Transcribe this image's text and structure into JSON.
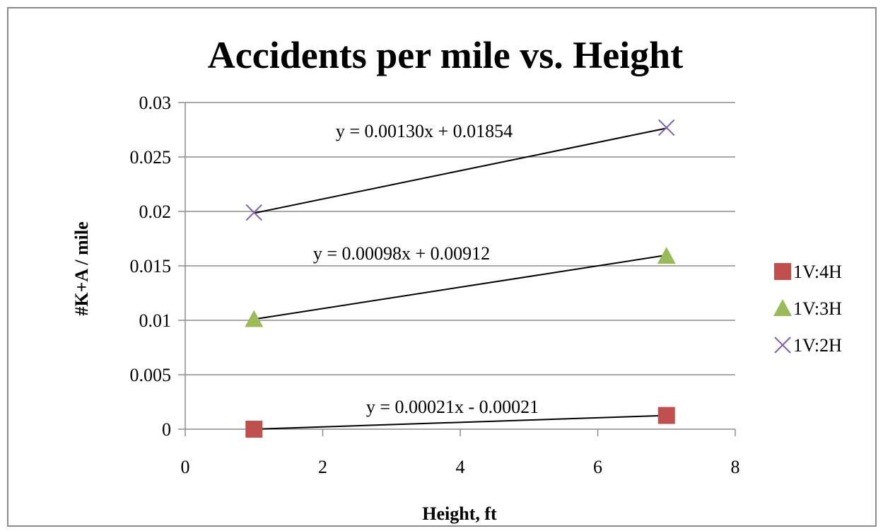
{
  "chart_data": {
    "type": "scatter",
    "title": "Accidents per mile vs. Height",
    "xlabel": "Height, ft",
    "ylabel": "#K+A / mile",
    "xlim": [
      0,
      8
    ],
    "ylim": [
      0,
      0.03
    ],
    "x_ticks": [
      "0",
      "2",
      "4",
      "6",
      "8"
    ],
    "y_ticks": [
      "0",
      "0.005",
      "0.01",
      "0.015",
      "0.02",
      "0.025",
      "0.03"
    ],
    "grid": "horizontal",
    "legend_position": "right",
    "series": [
      {
        "name": "1V:4H",
        "marker": "square",
        "color": "#c0504d",
        "x": [
          1,
          7
        ],
        "y": [
          0.0,
          0.00126
        ],
        "trendline": {
          "slope": 0.00021,
          "intercept": -0.00021,
          "equation": "y = 0.00021x - 0.00021"
        }
      },
      {
        "name": "1V:3H",
        "marker": "triangle",
        "color": "#9bbb59",
        "x": [
          1,
          7
        ],
        "y": [
          0.0101,
          0.0159
        ],
        "trendline": {
          "slope": 0.00098,
          "intercept": 0.00912,
          "equation": "y = 0.00098x + 0.00912"
        }
      },
      {
        "name": "1V:2H",
        "marker": "x",
        "color": "#8064a2",
        "x": [
          1,
          7
        ],
        "y": [
          0.0199,
          0.0277
        ],
        "trendline": {
          "slope": 0.0013,
          "intercept": 0.01854,
          "equation": "y = 0.00130x + 0.01854"
        }
      }
    ]
  }
}
